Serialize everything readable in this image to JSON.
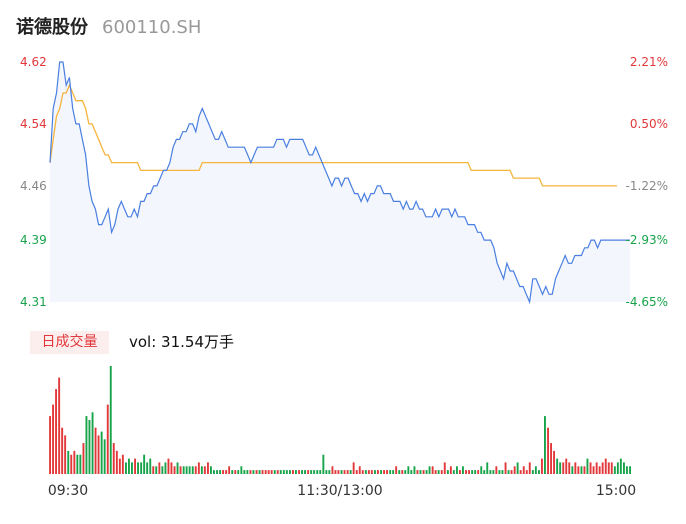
{
  "header": {
    "name": "诺德股份",
    "code": "600110.SH"
  },
  "volume_panel": {
    "tag": "日成交量",
    "label": "vol: 31.54万手"
  },
  "colors": {
    "price_line": "#4a7fe0",
    "avg_line": "#f5b43c",
    "up": "#e2383a",
    "down": "#17a34a",
    "neutral": "#888888",
    "area_fill": "#f3f6fd"
  },
  "chart_data": [
    {
      "type": "line",
      "x_ticks": [
        "09:30",
        "11:30/13:00",
        "15:00"
      ],
      "ylim": [
        4.31,
        4.62
      ],
      "y_ticks_left": [
        {
          "value": 4.62,
          "label": "4.62",
          "tone": "up"
        },
        {
          "value": 4.54,
          "label": "4.54",
          "tone": "up"
        },
        {
          "value": 4.46,
          "label": "4.46",
          "tone": "neutral"
        },
        {
          "value": 4.39,
          "label": "4.39",
          "tone": "down"
        },
        {
          "value": 4.31,
          "label": "4.31",
          "tone": "down"
        }
      ],
      "y_ticks_right": [
        {
          "value": 4.62,
          "label": "2.21%",
          "tone": "up"
        },
        {
          "value": 4.54,
          "label": "0.50%",
          "tone": "up"
        },
        {
          "value": 4.46,
          "label": "-1.22%",
          "tone": "neutral"
        },
        {
          "value": 4.39,
          "label": "-2.93%",
          "tone": "down"
        },
        {
          "value": 4.31,
          "label": "-4.65%",
          "tone": "down"
        }
      ],
      "series": [
        {
          "role": "price",
          "values": [
            4.49,
            4.56,
            4.58,
            4.62,
            4.62,
            4.59,
            4.6,
            4.56,
            4.54,
            4.54,
            4.52,
            4.5,
            4.46,
            4.44,
            4.43,
            4.41,
            4.41,
            4.42,
            4.43,
            4.4,
            4.41,
            4.43,
            4.44,
            4.43,
            4.42,
            4.42,
            4.43,
            4.42,
            4.44,
            4.44,
            4.45,
            4.45,
            4.46,
            4.46,
            4.47,
            4.48,
            4.48,
            4.49,
            4.51,
            4.52,
            4.52,
            4.53,
            4.53,
            4.54,
            4.54,
            4.53,
            4.55,
            4.56,
            4.55,
            4.54,
            4.53,
            4.52,
            4.52,
            4.53,
            4.52,
            4.51,
            4.51,
            4.51,
            4.51,
            4.51,
            4.51,
            4.5,
            4.49,
            4.5,
            4.51,
            4.51,
            4.51,
            4.51,
            4.51,
            4.51,
            4.52,
            4.52,
            4.52,
            4.51,
            4.52,
            4.52,
            4.52,
            4.52,
            4.52,
            4.51,
            4.5,
            4.5,
            4.51,
            4.5,
            4.49,
            4.48,
            4.47,
            4.46,
            4.47,
            4.47,
            4.46,
            4.47,
            4.47,
            4.46,
            4.45,
            4.45,
            4.44,
            4.45,
            4.44,
            4.45,
            4.45,
            4.46,
            4.46,
            4.45,
            4.45,
            4.45,
            4.44,
            4.44,
            4.44,
            4.43,
            4.44,
            4.43,
            4.43,
            4.44,
            4.43,
            4.43,
            4.42,
            4.42,
            4.42,
            4.43,
            4.42,
            4.43,
            4.43,
            4.43,
            4.42,
            4.43,
            4.42,
            4.42,
            4.42,
            4.41,
            4.41,
            4.41,
            4.4,
            4.4,
            4.39,
            4.39,
            4.39,
            4.38,
            4.36,
            4.35,
            4.34,
            4.36,
            4.35,
            4.35,
            4.34,
            4.33,
            4.33,
            4.32,
            4.31,
            4.34,
            4.34,
            4.33,
            4.32,
            4.33,
            4.32,
            4.32,
            4.34,
            4.35,
            4.36,
            4.37,
            4.36,
            4.36,
            4.37,
            4.37,
            4.37,
            4.38,
            4.38,
            4.39,
            4.39,
            4.38,
            4.39,
            4.39,
            4.39,
            4.39,
            4.39,
            4.39,
            4.39,
            4.39,
            4.39,
            4.39
          ]
        },
        {
          "role": "average",
          "values": [
            4.49,
            4.52,
            4.55,
            4.56,
            4.58,
            4.58,
            4.59,
            4.58,
            4.57,
            4.57,
            4.57,
            4.56,
            4.54,
            4.54,
            4.53,
            4.52,
            4.51,
            4.5,
            4.5,
            4.49,
            4.49,
            4.49,
            4.49,
            4.49,
            4.49,
            4.49,
            4.49,
            4.49,
            4.48,
            4.48,
            4.48,
            4.48,
            4.48,
            4.48,
            4.48,
            4.48,
            4.48,
            4.48,
            4.48,
            4.48,
            4.48,
            4.48,
            4.48,
            4.48,
            4.48,
            4.48,
            4.48,
            4.49,
            4.49,
            4.49,
            4.49,
            4.49,
            4.49,
            4.49,
            4.49,
            4.49,
            4.49,
            4.49,
            4.49,
            4.49,
            4.49,
            4.49,
            4.49,
            4.49,
            4.49,
            4.49,
            4.49,
            4.49,
            4.49,
            4.49,
            4.49,
            4.49,
            4.49,
            4.49,
            4.49,
            4.49,
            4.49,
            4.49,
            4.49,
            4.49,
            4.49,
            4.49,
            4.49,
            4.49,
            4.49,
            4.49,
            4.49,
            4.49,
            4.49,
            4.49,
            4.49,
            4.49,
            4.49,
            4.49,
            4.49,
            4.49,
            4.49,
            4.49,
            4.49,
            4.49,
            4.49,
            4.49,
            4.49,
            4.49,
            4.49,
            4.49,
            4.49,
            4.49,
            4.49,
            4.49,
            4.49,
            4.49,
            4.49,
            4.49,
            4.49,
            4.49,
            4.49,
            4.49,
            4.49,
            4.49,
            4.49,
            4.49,
            4.49,
            4.49,
            4.49,
            4.49,
            4.49,
            4.49,
            4.49,
            4.49,
            4.48,
            4.48,
            4.48,
            4.48,
            4.48,
            4.48,
            4.48,
            4.48,
            4.48,
            4.48,
            4.48,
            4.48,
            4.48,
            4.47,
            4.47,
            4.47,
            4.47,
            4.47,
            4.47,
            4.47,
            4.47,
            4.47,
            4.46,
            4.46,
            4.46,
            4.46,
            4.46,
            4.46,
            4.46,
            4.46,
            4.46,
            4.46,
            4.46,
            4.46,
            4.46,
            4.46,
            4.46,
            4.46,
            4.46,
            4.46,
            4.46,
            4.46,
            4.46,
            4.46,
            4.46,
            4.46
          ]
        }
      ]
    },
    {
      "type": "bar",
      "unit": "万手",
      "x_ticks": [
        "09:30",
        "11:30/13:00",
        "15:00"
      ],
      "values": [
        15,
        18,
        22,
        25,
        12,
        10,
        6,
        5,
        6,
        5,
        5,
        8,
        15,
        14,
        16,
        12,
        10,
        11,
        9,
        18,
        28,
        8,
        6,
        4,
        5,
        3,
        4,
        3,
        4,
        3,
        3,
        5,
        3,
        4,
        2,
        2,
        3,
        2,
        3,
        4,
        3,
        2,
        3,
        2,
        2,
        2,
        2,
        2,
        2,
        3,
        2,
        2,
        3,
        2,
        1,
        1,
        1,
        1,
        1,
        2,
        1,
        1,
        1,
        2,
        1,
        1,
        1,
        1,
        1,
        1,
        1,
        1,
        1,
        1,
        1,
        1,
        1,
        1,
        1,
        1,
        1,
        1,
        1,
        1,
        1,
        1,
        1,
        1,
        1,
        1,
        5,
        1,
        1,
        2,
        1,
        1,
        1,
        1,
        1,
        1,
        3,
        1,
        2,
        1,
        1,
        1,
        1,
        1,
        1,
        1,
        1,
        1,
        1,
        1,
        2,
        1,
        1,
        1,
        2,
        1,
        2,
        1,
        1,
        1,
        1,
        2,
        2,
        1,
        1,
        1,
        3,
        1,
        2,
        1,
        2,
        1,
        2,
        1,
        1,
        1,
        1,
        1,
        2,
        1,
        3,
        1,
        1,
        2,
        1,
        1,
        3,
        1,
        1,
        2,
        3,
        1,
        2,
        1,
        3,
        1,
        2,
        1,
        4,
        15,
        12,
        8,
        6,
        4,
        3,
        3,
        4,
        3,
        2,
        3,
        2,
        2,
        2,
        4,
        3,
        2,
        3,
        2,
        3,
        4,
        3,
        3,
        2,
        3,
        4,
        3,
        2,
        2
      ],
      "directions": [
        "up",
        "up",
        "up",
        "up",
        "up",
        "up",
        "down",
        "up",
        "up",
        "down",
        "down",
        "up",
        "down",
        "down",
        "down",
        "up",
        "up",
        "down",
        "down",
        "up",
        "down",
        "up",
        "up",
        "up",
        "up",
        "down",
        "down",
        "down",
        "up",
        "down",
        "down",
        "down",
        "down",
        "down",
        "up",
        "down",
        "up",
        "down",
        "down",
        "up",
        "up",
        "up",
        "down",
        "up",
        "down",
        "down",
        "down",
        "down",
        "up",
        "up",
        "down",
        "up",
        "up",
        "down",
        "down",
        "down",
        "down",
        "up",
        "up",
        "up",
        "down",
        "up",
        "down",
        "down",
        "down",
        "down",
        "up",
        "down",
        "up",
        "down",
        "up",
        "up",
        "up",
        "up",
        "down",
        "up",
        "down",
        "down",
        "down",
        "down",
        "up",
        "down",
        "up",
        "down",
        "down",
        "up",
        "down",
        "down",
        "down",
        "down",
        "down",
        "down",
        "down",
        "up",
        "up",
        "up",
        "down",
        "up",
        "up",
        "down",
        "up",
        "up",
        "up",
        "up",
        "down",
        "up",
        "up",
        "down",
        "up",
        "down",
        "up",
        "up",
        "down",
        "down",
        "up",
        "down",
        "up",
        "down",
        "down",
        "down",
        "down",
        "up",
        "down",
        "up",
        "down",
        "down",
        "up",
        "up",
        "down",
        "up",
        "up",
        "down",
        "up",
        "down",
        "down",
        "up",
        "down",
        "up",
        "up",
        "down",
        "down",
        "up",
        "down",
        "down",
        "down",
        "down",
        "down",
        "up",
        "down",
        "down",
        "up",
        "down",
        "up",
        "up",
        "down",
        "up",
        "up",
        "up",
        "up",
        "down",
        "down",
        "down",
        "up",
        "down",
        "up",
        "up",
        "up",
        "down",
        "down",
        "up",
        "up",
        "up",
        "down",
        "up",
        "up",
        "down",
        "up",
        "down",
        "up",
        "up",
        "up",
        "up",
        "up",
        "up",
        "up",
        "up"
      ]
    }
  ]
}
